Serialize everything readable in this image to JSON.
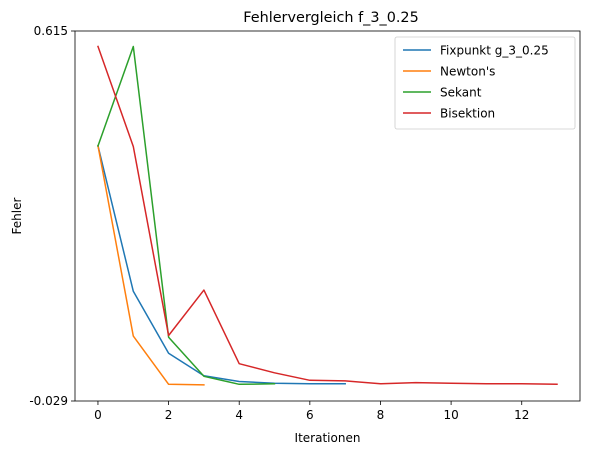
{
  "chart_data": {
    "type": "line",
    "title": "Fehlervergleich f_3_0.25",
    "xlabel": "Iterationen",
    "ylabel": "Fehler",
    "xlim": [
      -0.65,
      13.65
    ],
    "ylim": [
      -0.029,
      0.615
    ],
    "xticks": [
      0,
      2,
      4,
      6,
      8,
      10,
      12
    ],
    "yticks": [
      0.615,
      -0.029
    ],
    "ytick_labels": [
      "0.615",
      "-0.029"
    ],
    "grid": false,
    "legend_position": "top-right",
    "series": [
      {
        "name": "Fixpunkt g_3_0.25",
        "color": "#1f77b4",
        "x": [
          0,
          1,
          2,
          3,
          4,
          5,
          6,
          7
        ],
        "y": [
          0.415,
          0.162,
          0.054,
          0.015,
          0.005,
          0.002,
          0.001,
          0.001
        ]
      },
      {
        "name": "Newton's",
        "color": "#ff7f0e",
        "x": [
          0,
          1,
          2,
          3
        ],
        "y": [
          0.415,
          0.084,
          0.0,
          -0.001
        ]
      },
      {
        "name": "Sekant",
        "color": "#2ca02c",
        "x": [
          0,
          1,
          2,
          3,
          4,
          5
        ],
        "y": [
          0.415,
          0.588,
          0.082,
          0.014,
          0.0,
          0.001
        ]
      },
      {
        "name": "Bisektion",
        "color": "#d62728",
        "x": [
          0,
          1,
          2,
          3,
          4,
          5,
          6,
          7,
          8,
          9,
          10,
          11,
          12,
          13
        ],
        "y": [
          0.588,
          0.414,
          0.085,
          0.164,
          0.036,
          0.02,
          0.007,
          0.006,
          0.001,
          0.003,
          0.002,
          0.001,
          0.001,
          0.0
        ]
      }
    ]
  }
}
